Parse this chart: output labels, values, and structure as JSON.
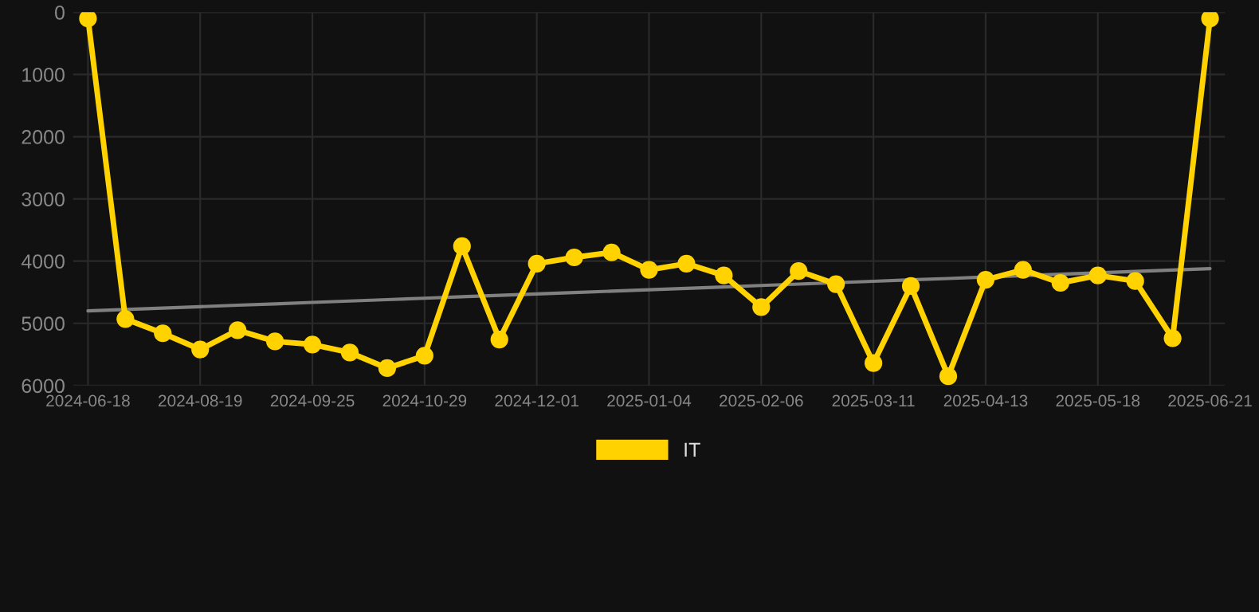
{
  "chart_data": {
    "type": "line",
    "categories": [
      "2024-06-18",
      null,
      null,
      "2024-08-19",
      null,
      null,
      "2024-09-25",
      null,
      null,
      "2024-10-29",
      null,
      null,
      "2024-12-01",
      null,
      null,
      "2025-01-04",
      null,
      null,
      "2025-02-06",
      null,
      null,
      "2025-03-11",
      null,
      null,
      "2025-04-13",
      null,
      null,
      "2025-05-18",
      null,
      null,
      "2025-06-21"
    ],
    "series": [
      {
        "name": "IT",
        "color": "#ffd200",
        "marker": "circle",
        "values": [
          100,
          4930,
          5160,
          5420,
          5110,
          5290,
          5340,
          5470,
          5720,
          5520,
          3760,
          5260,
          4040,
          3940,
          3860,
          4140,
          4040,
          4230,
          4740,
          4160,
          4370,
          5640,
          4400,
          5850,
          4300,
          4140,
          4350,
          4230,
          4320,
          5240,
          100
        ]
      },
      {
        "type": "line",
        "color": "#808080",
        "marker": "none",
        "values": [
          4800,
          4777,
          4755,
          4732,
          4709,
          4687,
          4664,
          4641,
          4619,
          4596,
          4573,
          4551,
          4528,
          4505,
          4483,
          4460,
          4437,
          4415,
          4392,
          4369,
          4347,
          4324,
          4301,
          4279,
          4256,
          4233,
          4211,
          4188,
          4165,
          4143,
          4120
        ]
      }
    ],
    "ylim": [
      6000,
      0
    ],
    "yticks": [
      0,
      1000,
      2000,
      3000,
      4000,
      5000,
      6000
    ],
    "grid": true,
    "legend": "bottom",
    "line_style": "solid"
  }
}
